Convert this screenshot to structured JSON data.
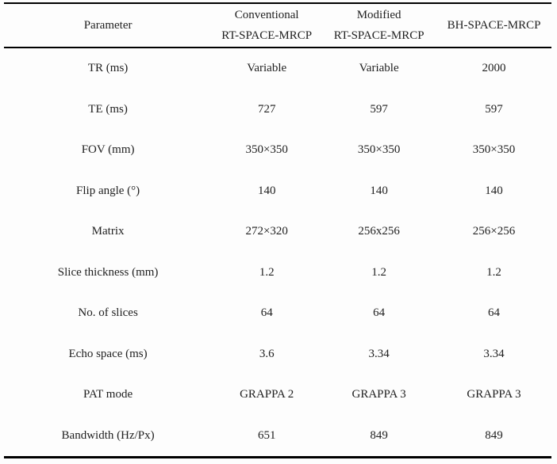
{
  "page": {
    "background_color": "#fdfdfd",
    "text_color": "#1f1f1f",
    "rule_color": "#000000"
  },
  "table": {
    "header": {
      "parameter": "Parameter",
      "col2_line1": "Conventional",
      "col2_line2": "RT-SPACE-MRCP",
      "col3_line1": "Modified",
      "col3_line2": "RT-SPACE-MRCP",
      "col4": "BH-SPACE-MRCP"
    },
    "rows": [
      {
        "parameter": "TR (ms)",
        "values": [
          "Variable",
          "Variable",
          "2000"
        ]
      },
      {
        "parameter": "TE (ms)",
        "values": [
          "727",
          "597",
          "597"
        ]
      },
      {
        "parameter": "FOV (mm)",
        "values": [
          "350×350",
          "350×350",
          "350×350"
        ]
      },
      {
        "parameter": "Flip angle (°)",
        "values": [
          "140",
          "140",
          "140"
        ]
      },
      {
        "parameter": "Matrix",
        "values": [
          "272×320",
          "256x256",
          "256×256"
        ]
      },
      {
        "parameter": "Slice thickness (mm)",
        "values": [
          "1.2",
          "1.2",
          "1.2"
        ]
      },
      {
        "parameter": "No. of slices",
        "values": [
          "64",
          "64",
          "64"
        ]
      },
      {
        "parameter": "Echo space (ms)",
        "values": [
          "3.6",
          "3.34",
          "3.34"
        ]
      },
      {
        "parameter": "PAT mode",
        "values": [
          "GRAPPA 2",
          "GRAPPA 3",
          "GRAPPA 3"
        ]
      },
      {
        "parameter": "Bandwidth (Hz/Px)",
        "values": [
          "651",
          "849",
          "849"
        ]
      }
    ]
  }
}
